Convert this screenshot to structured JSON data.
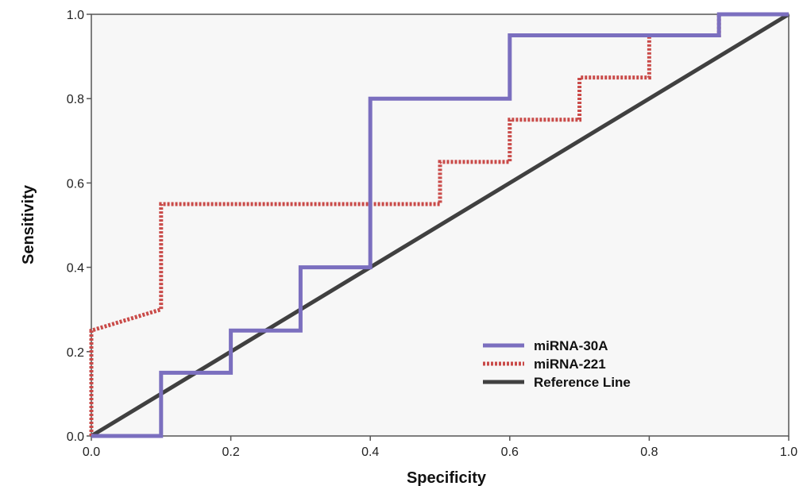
{
  "chart_data": {
    "type": "line",
    "xlabel": "Specificity",
    "ylabel": "Sensitivity",
    "xlim": [
      0,
      1
    ],
    "ylim": [
      0,
      1
    ],
    "xticks": [
      "0.0",
      "0.2",
      "0.4",
      "0.6",
      "0.8",
      "1.0"
    ],
    "yticks": [
      "0.0",
      "0.2",
      "0.4",
      "0.6",
      "0.8",
      "1.0"
    ],
    "grid": false,
    "legend_position": "bottom-right",
    "colors": {
      "plot_background": "#f7f7f7",
      "axis": "#555555"
    },
    "series": [
      {
        "name": "miRNA-30A",
        "style": "solid",
        "color": "#7b6fbf",
        "x": [
          0,
          0.1,
          0.1,
          0.2,
          0.2,
          0.3,
          0.3,
          0.4,
          0.4,
          0.6,
          0.6,
          0.9,
          0.9,
          1.0
        ],
        "y": [
          0,
          0,
          0.15,
          0.15,
          0.25,
          0.25,
          0.4,
          0.4,
          0.8,
          0.8,
          0.95,
          0.95,
          1.0,
          1.0
        ]
      },
      {
        "name": "miRNA-221",
        "style": "dotted",
        "color": "#c94a48",
        "x": [
          0,
          0,
          0.1,
          0.1,
          0.5,
          0.5,
          0.6,
          0.6,
          0.7,
          0.7,
          0.8,
          0.8,
          0.9,
          0.9,
          1.0
        ],
        "y": [
          0,
          0.25,
          0.3,
          0.55,
          0.55,
          0.65,
          0.65,
          0.75,
          0.75,
          0.85,
          0.85,
          0.95,
          0.95,
          1.0,
          1.0
        ]
      },
      {
        "name": "Reference Line",
        "style": "solid",
        "color": "#404040",
        "x": [
          0,
          1
        ],
        "y": [
          0,
          1
        ]
      }
    ]
  }
}
